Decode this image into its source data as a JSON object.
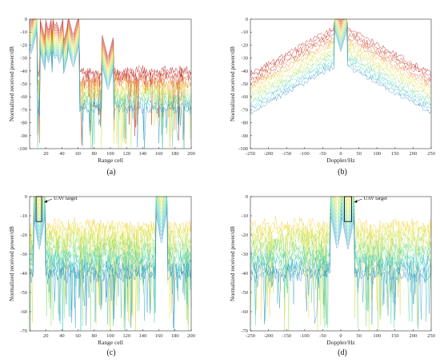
{
  "chart_data": [
    {
      "panel_label": "(a)",
      "type": "line",
      "xlabel": "Range cell",
      "ylabel": "Normalized received power/dB",
      "xlim": [
        0,
        200
      ],
      "ylim": [
        -100,
        0
      ],
      "xticks": [
        20,
        40,
        60,
        80,
        100,
        120,
        140,
        160,
        180,
        200
      ],
      "yticks": [
        0,
        -10,
        -20,
        -30,
        -40,
        -50,
        -60,
        -70,
        -80,
        -90,
        -100
      ],
      "grid": false,
      "colormap": "jet",
      "series_description": "Overlaid clutter range profiles; strong peaks near cells 2, 20, 40, 55 and ~97",
      "peaks": [
        {
          "x": 2,
          "y": -2
        },
        {
          "x": 20,
          "y": -17
        },
        {
          "x": 27,
          "y": -18
        },
        {
          "x": 35,
          "y": -15
        },
        {
          "x": 41,
          "y": -20
        },
        {
          "x": 54,
          "y": -13
        },
        {
          "x": 97,
          "y": -30
        }
      ],
      "floor_range": [
        -100,
        -35
      ]
    },
    {
      "panel_label": "(b)",
      "type": "line",
      "xlabel": "Doppler/Hz",
      "ylabel": "Normalized received power/dB",
      "xlim": [
        -250,
        250
      ],
      "ylim": [
        -100,
        0
      ],
      "xticks": [
        -250,
        -200,
        -150,
        -100,
        -50,
        0,
        50,
        100,
        150,
        200,
        250
      ],
      "yticks": [
        0,
        -10,
        -20,
        -30,
        -40,
        -50,
        -60,
        -70,
        -80,
        -90,
        -100
      ],
      "grid": false,
      "colormap": "jet",
      "series_description": "Doppler spectra with clutter peak at 0 Hz",
      "peaks": [
        {
          "x": 0,
          "y": 0
        }
      ],
      "floor_range": [
        -100,
        -40
      ]
    },
    {
      "panel_label": "(c)",
      "type": "line",
      "xlabel": "Range cell",
      "ylabel": "Normalized received power/dB",
      "xlim": [
        0,
        200
      ],
      "ylim": [
        -70,
        0
      ],
      "xticks": [
        20,
        40,
        60,
        80,
        100,
        120,
        140,
        160,
        180,
        200
      ],
      "yticks": [
        0,
        -10,
        -20,
        -30,
        -40,
        -50,
        -60,
        -70
      ],
      "grid": false,
      "colormap": "jet",
      "annotation": "UAV target",
      "annotation_box_x": [
        8,
        15
      ],
      "annotation_box_y": [
        -13,
        0
      ],
      "peaks": [
        {
          "x": 12,
          "y": -3
        },
        {
          "x": 163,
          "y": 0
        }
      ],
      "floor_range": [
        -68,
        -10
      ]
    },
    {
      "panel_label": "(d)",
      "type": "line",
      "xlabel": "Doppler/Hz",
      "ylabel": "Normalized received power/dB",
      "xlim": [
        -250,
        250
      ],
      "ylim": [
        -70,
        0
      ],
      "xticks": [
        -250,
        -200,
        -150,
        -100,
        -50,
        0,
        50,
        100,
        150,
        200,
        250
      ],
      "yticks": [
        0,
        -10,
        -20,
        -30,
        -40,
        -50,
        -60,
        -70
      ],
      "grid": false,
      "colormap": "jet",
      "annotation": "UAV target",
      "annotation_box_x": [
        10,
        30
      ],
      "annotation_box_y": [
        -13,
        0
      ],
      "peaks": [
        {
          "x": 20,
          "y": -3
        },
        {
          "x": -10,
          "y": -3
        }
      ],
      "floor_range": [
        -68,
        -10
      ]
    }
  ]
}
